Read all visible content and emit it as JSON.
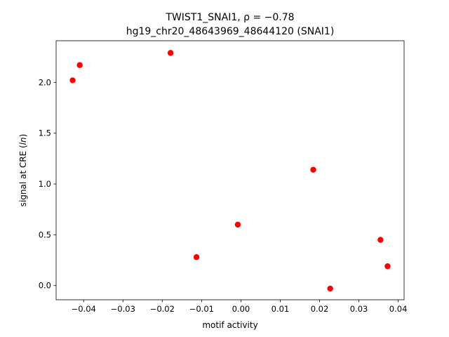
{
  "chart_data": {
    "type": "scatter",
    "title_line1": "TWIST1_SNAI1, ρ = −0.78",
    "title_line2": "hg19_chr20_48643969_48644120 (SNAI1)",
    "xlabel": "motif activity",
    "ylabel_prefix": "signal at CRE (",
    "ylabel_italic": "ln",
    "ylabel_suffix": ")",
    "xlim": [
      -0.047,
      0.0415
    ],
    "ylim": [
      -0.14,
      2.41
    ],
    "xticks": [
      -0.04,
      -0.03,
      -0.02,
      -0.01,
      0.0,
      0.01,
      0.02,
      0.03,
      0.04
    ],
    "xtick_labels": [
      "−0.04",
      "−0.03",
      "−0.02",
      "−0.01",
      "0.00",
      "0.01",
      "0.02",
      "0.03",
      "0.04"
    ],
    "yticks": [
      0.0,
      0.5,
      1.0,
      1.5,
      2.0
    ],
    "ytick_labels": [
      "0.0",
      "0.5",
      "1.0",
      "1.5",
      "2.0"
    ],
    "marker_color": "#ff0000",
    "grid": false,
    "x": [
      -0.0428,
      -0.041,
      -0.0179,
      -0.0113,
      -0.0008,
      0.0184,
      0.0227,
      0.0355,
      0.0373
    ],
    "y": [
      2.02,
      2.17,
      2.29,
      0.28,
      0.6,
      1.14,
      -0.03,
      0.45,
      0.19
    ]
  }
}
